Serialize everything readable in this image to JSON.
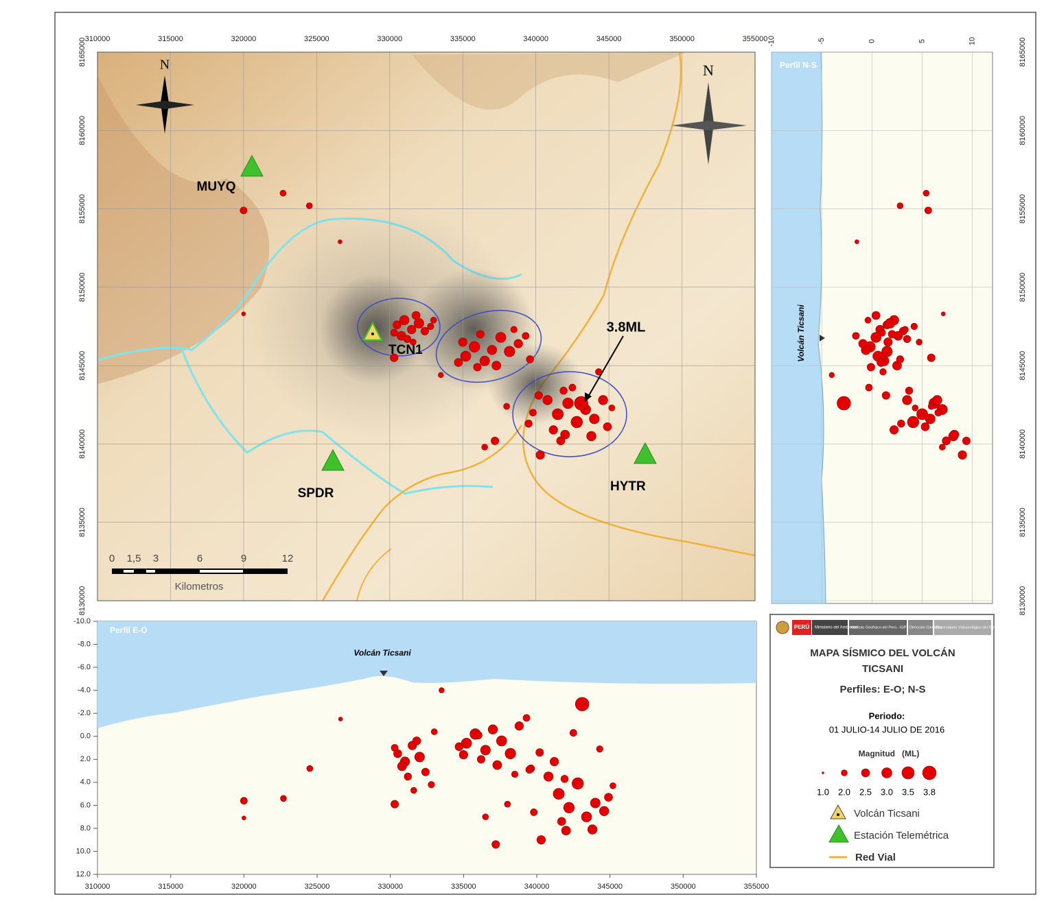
{
  "map": {
    "xticks": [
      310000,
      315000,
      320000,
      325000,
      330000,
      335000,
      340000,
      345000,
      350000,
      355000
    ],
    "yticks": [
      8130000,
      8135000,
      8140000,
      8145000,
      8150000,
      8155000,
      8160000,
      8165000
    ],
    "xlim": [
      310000,
      355000
    ],
    "ylim": [
      8130000,
      8165000
    ],
    "stations": [
      {
        "name": "MUYQ",
        "e": 320570,
        "n": 8157700
      },
      {
        "name": "SPDR",
        "e": 326110,
        "n": 8138930
      },
      {
        "name": "HYTR",
        "e": 347480,
        "n": 8139370
      }
    ],
    "volcano": {
      "name": "TCN1",
      "e": 328830,
      "n": 8147110
    },
    "annotation": "3.8ML",
    "north": "N",
    "scale": {
      "ticks": [
        "0",
        "1,5",
        "3",
        "6",
        "9",
        "12"
      ],
      "unit": "Kilometros"
    }
  },
  "profile_ns": {
    "title": "Perfil N-S",
    "volcano": "Volcán Ticsani",
    "xticks": [
      -10,
      -5,
      0,
      5,
      10
    ],
    "xlim": [
      -10,
      12
    ]
  },
  "profile_eo": {
    "title": "Perfil E-O",
    "volcano": "Volcán Ticsani",
    "ylim": [
      -10,
      12
    ],
    "yticks": [
      {
        "value": -10,
        "label": "-10.0"
      },
      {
        "value": -8,
        "label": "-8.0"
      },
      {
        "value": -6,
        "label": "-6.0"
      },
      {
        "value": -4,
        "label": "-4.0"
      },
      {
        "value": -2,
        "label": "-2.0"
      },
      {
        "value": 0,
        "label": "0.0"
      },
      {
        "value": 2,
        "label": "2.0"
      },
      {
        "value": 4,
        "label": "4.0"
      },
      {
        "value": 6,
        "label": "6.0"
      },
      {
        "value": 8,
        "label": "8.0"
      },
      {
        "value": 10,
        "label": "10.0"
      },
      {
        "value": 12,
        "label": "12.0"
      }
    ]
  },
  "events": [
    {
      "e": 330500,
      "n": 8147600,
      "d": 1.5,
      "m": 2.5
    },
    {
      "e": 331000,
      "n": 8147900,
      "d": 2.2,
      "m": 2.8
    },
    {
      "e": 331500,
      "n": 8147300,
      "d": 0.8,
      "m": 2.6
    },
    {
      "e": 332000,
      "n": 8147700,
      "d": 1.8,
      "m": 2.9
    },
    {
      "e": 332400,
      "n": 8147200,
      "d": 3.1,
      "m": 2.4
    },
    {
      "e": 330800,
      "n": 8146900,
      "d": 2.6,
      "m": 2.7
    },
    {
      "e": 331800,
      "n": 8148200,
      "d": 0.4,
      "m": 2.5
    },
    {
      "e": 332800,
      "n": 8147500,
      "d": 4.2,
      "m": 2.1
    },
    {
      "e": 331200,
      "n": 8146700,
      "d": 3.5,
      "m": 2.3
    },
    {
      "e": 330300,
      "n": 8147100,
      "d": 1.0,
      "m": 2.2
    },
    {
      "e": 333000,
      "n": 8147900,
      "d": -0.4,
      "m": 2.0
    },
    {
      "e": 331600,
      "n": 8146500,
      "d": 4.7,
      "m": 2.0
    },
    {
      "e": 335200,
      "n": 8145600,
      "d": 0.6,
      "m": 3.0
    },
    {
      "e": 335800,
      "n": 8146200,
      "d": -0.2,
      "m": 3.1
    },
    {
      "e": 336500,
      "n": 8145300,
      "d": 1.2,
      "m": 2.9
    },
    {
      "e": 337000,
      "n": 8146000,
      "d": -0.6,
      "m": 2.8
    },
    {
      "e": 337600,
      "n": 8146800,
      "d": 0.4,
      "m": 3.0
    },
    {
      "e": 338200,
      "n": 8145900,
      "d": 1.5,
      "m": 3.1
    },
    {
      "e": 338800,
      "n": 8146400,
      "d": -0.9,
      "m": 2.6
    },
    {
      "e": 336200,
      "n": 8147000,
      "d": 2.0,
      "m": 2.4
    },
    {
      "e": 334700,
      "n": 8145200,
      "d": 0.9,
      "m": 2.5
    },
    {
      "e": 339300,
      "n": 8146900,
      "d": -1.6,
      "m": 2.2
    },
    {
      "e": 337300,
      "n": 8145000,
      "d": 2.5,
      "m": 2.7
    },
    {
      "e": 336000,
      "n": 8144900,
      "d": -0.1,
      "m": 2.4
    },
    {
      "e": 338500,
      "n": 8147300,
      "d": 3.3,
      "m": 2.1
    },
    {
      "e": 335000,
      "n": 8146500,
      "d": 1.6,
      "m": 2.6
    },
    {
      "e": 339600,
      "n": 8145400,
      "d": 2.8,
      "m": 2.3
    },
    {
      "e": 340800,
      "n": 8142800,
      "d": 3.5,
      "m": 2.8
    },
    {
      "e": 341500,
      "n": 8141900,
      "d": 5.0,
      "m": 3.2
    },
    {
      "e": 342200,
      "n": 8142600,
      "d": 6.2,
      "m": 3.1
    },
    {
      "e": 342800,
      "n": 8141400,
      "d": 4.1,
      "m": 3.3
    },
    {
      "e": 343400,
      "n": 8142200,
      "d": 7.0,
      "m": 3.0
    },
    {
      "e": 344000,
      "n": 8141600,
      "d": 5.8,
      "m": 2.9
    },
    {
      "e": 344600,
      "n": 8142800,
      "d": 6.5,
      "m": 2.8
    },
    {
      "e": 341200,
      "n": 8140900,
      "d": 2.2,
      "m": 2.6
    },
    {
      "e": 342000,
      "n": 8140600,
      "d": 8.2,
      "m": 2.7
    },
    {
      "e": 343100,
      "n": 8142600,
      "d": -2.8,
      "m": 3.8
    },
    {
      "e": 340200,
      "n": 8143100,
      "d": 1.4,
      "m": 2.4
    },
    {
      "e": 344900,
      "n": 8141100,
      "d": 5.3,
      "m": 2.5
    },
    {
      "e": 341900,
      "n": 8143400,
      "d": 3.7,
      "m": 2.3
    },
    {
      "e": 339800,
      "n": 8142000,
      "d": 6.6,
      "m": 2.2
    },
    {
      "e": 343800,
      "n": 8140500,
      "d": 8.1,
      "m": 2.8
    },
    {
      "e": 342500,
      "n": 8143600,
      "d": -0.3,
      "m": 2.2
    },
    {
      "e": 345200,
      "n": 8142300,
      "d": 4.3,
      "m": 2.0
    },
    {
      "e": 340300,
      "n": 8139300,
      "d": 9.0,
      "m": 2.6
    },
    {
      "e": 341700,
      "n": 8140200,
      "d": 7.4,
      "m": 2.5
    },
    {
      "e": 339500,
      "n": 8141300,
      "d": 2.9,
      "m": 2.3
    },
    {
      "e": 338000,
      "n": 8142400,
      "d": 5.9,
      "m": 2.0
    },
    {
      "e": 337200,
      "n": 8140200,
      "d": 9.4,
      "m": 2.4
    },
    {
      "e": 344300,
      "n": 8144600,
      "d": 1.1,
      "m": 2.1
    },
    {
      "e": 320000,
      "n": 8154900,
      "d": 5.6,
      "m": 2.2
    },
    {
      "e": 322700,
      "n": 8156000,
      "d": 5.4,
      "m": 2.0
    },
    {
      "e": 324500,
      "n": 8155200,
      "d": 2.8,
      "m": 2.0
    },
    {
      "e": 320000,
      "n": 8148300,
      "d": 7.1,
      "m": 1.5
    },
    {
      "e": 326600,
      "n": 8152900,
      "d": -1.5,
      "m": 1.5
    },
    {
      "e": 333500,
      "n": 8144400,
      "d": -4.0,
      "m": 1.8
    },
    {
      "e": 336500,
      "n": 8139800,
      "d": 7.0,
      "m": 2.0
    },
    {
      "e": 330300,
      "n": 8145500,
      "d": 5.9,
      "m": 2.4
    }
  ],
  "legend": {
    "logo": {
      "country": "PERÚ",
      "ministry": "Ministerio del Ambiente",
      "institute": "Instituto Geofísico del Perú - IGP",
      "direction": "Dirección Científica",
      "observatory": "Observatorio Vulcanológico del Sur"
    },
    "title": [
      "MAPA SÍSMICO DEL VOLCÁN",
      "TICSANI"
    ],
    "subtitle": "Perfiles: E-O; N-S",
    "period_label": "Periodo:",
    "period": "01 JULIO-14 JULIO DE 2016",
    "magnitude_title": "Magnitud   (ML)",
    "magnitudes": [
      {
        "value": 1,
        "label": "1.0"
      },
      {
        "value": 2,
        "label": "2.0"
      },
      2.5,
      {
        "value": 3,
        "label": "3.0"
      },
      3.5,
      3.8
    ],
    "items": [
      "Volcán Ticsani",
      "Estación Telemétrica",
      "Red Vial"
    ]
  }
}
